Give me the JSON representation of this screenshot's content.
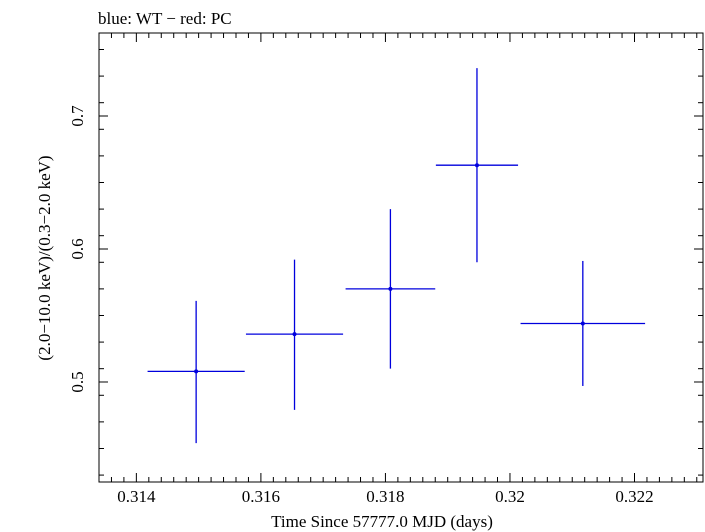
{
  "chart_data": {
    "type": "scatter",
    "title": "blue: WT − red: PC",
    "xlabel": "Time Since 57777.0 MJD (days)",
    "ylabel": "(2.0−10.0 keV)/(0.3−2.0 keV)",
    "xlim": [
      0.3134,
      0.3231
    ],
    "ylim": [
      0.4248,
      0.7624
    ],
    "x_ticks": [
      {
        "value": 0.314,
        "label": "0.314"
      },
      {
        "value": 0.316,
        "label": "0.316"
      },
      {
        "value": 0.318,
        "label": "0.318"
      },
      {
        "value": 0.32,
        "label": "0.32"
      },
      {
        "value": 0.322,
        "label": "0.322"
      }
    ],
    "y_ticks": [
      {
        "value": 0.5,
        "label": "0.5"
      },
      {
        "value": 0.6,
        "label": "0.6"
      },
      {
        "value": 0.7,
        "label": "0.7"
      }
    ],
    "grid": false,
    "series": [
      {
        "name": "WT",
        "color": "#0000dd",
        "points": [
          {
            "x": 0.31496,
            "y": 0.508,
            "xerr": 0.00078,
            "yerr_low": 0.054,
            "yerr_high": 0.053
          },
          {
            "x": 0.31654,
            "y": 0.536,
            "xerr": 0.00078,
            "yerr_low": 0.057,
            "yerr_high": 0.056
          },
          {
            "x": 0.31808,
            "y": 0.57,
            "xerr": 0.00072,
            "yerr_low": 0.06,
            "yerr_high": 0.06
          },
          {
            "x": 0.31947,
            "y": 0.663,
            "xerr": 0.00066,
            "yerr_low": 0.073,
            "yerr_high": 0.073
          },
          {
            "x": 0.32117,
            "y": 0.544,
            "xerr": 0.001,
            "yerr_low": 0.047,
            "yerr_high": 0.047
          }
        ]
      }
    ]
  }
}
